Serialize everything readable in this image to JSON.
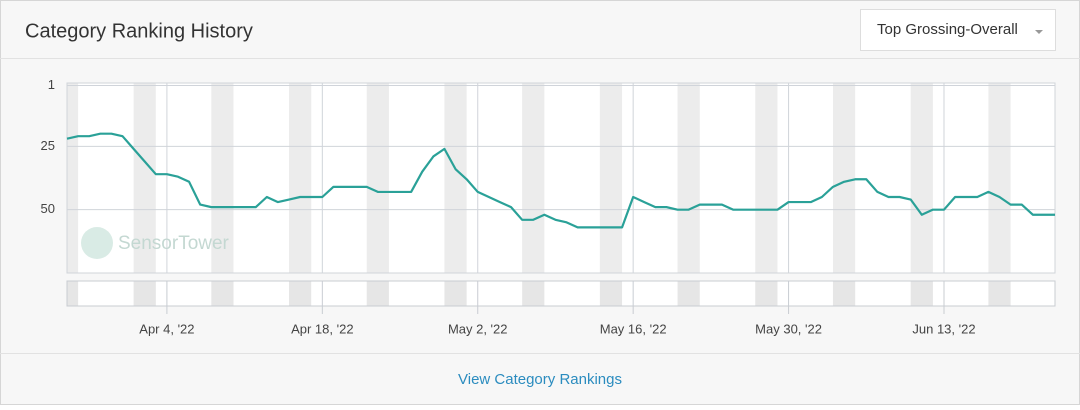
{
  "header": {
    "title": "Category Ranking History",
    "dropdown": "Top Grossing-Overall"
  },
  "chart_data": {
    "type": "line",
    "watermark": "SensorTower",
    "categories": [
      null,
      null,
      null,
      null,
      null,
      null,
      null,
      null,
      null,
      "Apr 4, '22",
      null,
      null,
      null,
      null,
      null,
      null,
      null,
      null,
      null,
      null,
      null,
      null,
      null,
      "Apr 18, '22",
      null,
      null,
      null,
      null,
      null,
      null,
      null,
      null,
      null,
      null,
      null,
      null,
      null,
      "May 2, '22",
      null,
      null,
      null,
      null,
      null,
      null,
      null,
      null,
      null,
      null,
      null,
      null,
      null,
      "May 16, '22",
      null,
      null,
      null,
      null,
      null,
      null,
      null,
      null,
      null,
      null,
      null,
      null,
      null,
      "May 30, '22",
      null,
      null,
      null,
      null,
      null,
      null,
      null,
      null,
      null,
      null,
      null,
      null,
      null,
      "Jun 13, '22",
      null,
      null,
      null,
      null,
      null,
      null,
      null,
      null,
      null,
      null
    ],
    "series": [
      {
        "color": "#2aa198",
        "values": [
          22,
          21,
          21,
          20,
          20,
          21,
          26,
          31,
          36,
          36,
          37,
          39,
          48,
          49,
          49,
          49,
          49,
          49,
          45,
          47,
          46,
          45,
          45,
          45,
          41,
          41,
          41,
          41,
          43,
          43,
          43,
          43,
          35,
          29,
          26,
          34,
          38,
          43,
          45,
          47,
          49,
          54,
          54,
          52,
          54,
          55,
          57,
          57,
          57,
          57,
          57,
          45,
          47,
          49,
          49,
          50,
          50,
          48,
          48,
          48,
          50,
          50,
          50,
          50,
          50,
          47,
          47,
          47,
          45,
          41,
          39,
          38,
          38,
          43,
          45,
          45,
          46,
          52,
          50,
          50,
          45,
          45,
          45,
          43,
          45,
          48,
          48,
          52,
          52,
          52
        ]
      }
    ],
    "ylim": [
      0,
      75
    ],
    "yticks": [
      1,
      25,
      50
    ],
    "y_inverted": true,
    "grid": true
  },
  "footer": {
    "link": "View Category Rankings"
  }
}
